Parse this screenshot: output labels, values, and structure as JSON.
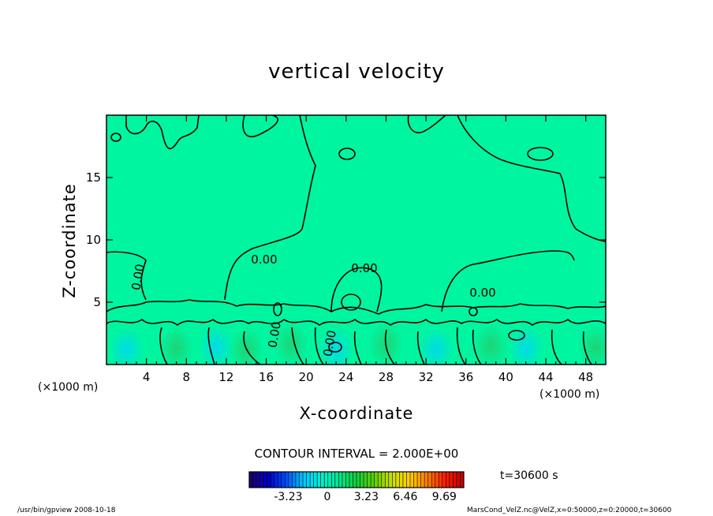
{
  "chart_data": {
    "type": "heatmap",
    "title": "vertical velocity",
    "xlabel": "X-coordinate",
    "ylabel": "Z-coordinate",
    "x_unit_left": "(×1000 m)",
    "x_unit_right": "(×1000 m)",
    "xlim": [
      0,
      50
    ],
    "ylim": [
      0,
      20
    ],
    "x_ticks": [
      4,
      8,
      12,
      16,
      20,
      24,
      28,
      32,
      36,
      40,
      44,
      48
    ],
    "y_ticks": [
      5,
      10,
      15
    ],
    "contour_labels": [
      "0.00",
      "0.00",
      "0.00",
      "0.00",
      "0.00",
      "0.00"
    ],
    "contour_interval": "CONTOUR INTERVAL = 2.000E+00",
    "time": "t=30600 s",
    "colorbar": {
      "ticks": [
        "-3.23",
        "0",
        "3.23",
        "6.46",
        "9.69"
      ],
      "tick_values": [
        -3.23,
        0,
        3.23,
        6.46,
        9.69
      ],
      "range": [
        -6.46,
        11.3
      ],
      "colors": [
        "#1a006e",
        "#0000c8",
        "#0050ff",
        "#00c8ff",
        "#00f0d0",
        "#00e890",
        "#10d040",
        "#60d000",
        "#c8e000",
        "#ffd000",
        "#ff8000",
        "#ff2000",
        "#c80000"
      ]
    },
    "background_color": "#00f5a0",
    "grid": false
  },
  "footer": {
    "left": "/usr/bin/gpview  2008-10-18",
    "right": "MarsCond_VelZ.nc@VelZ,x=0:50000,z=0:20000,t=30600"
  }
}
